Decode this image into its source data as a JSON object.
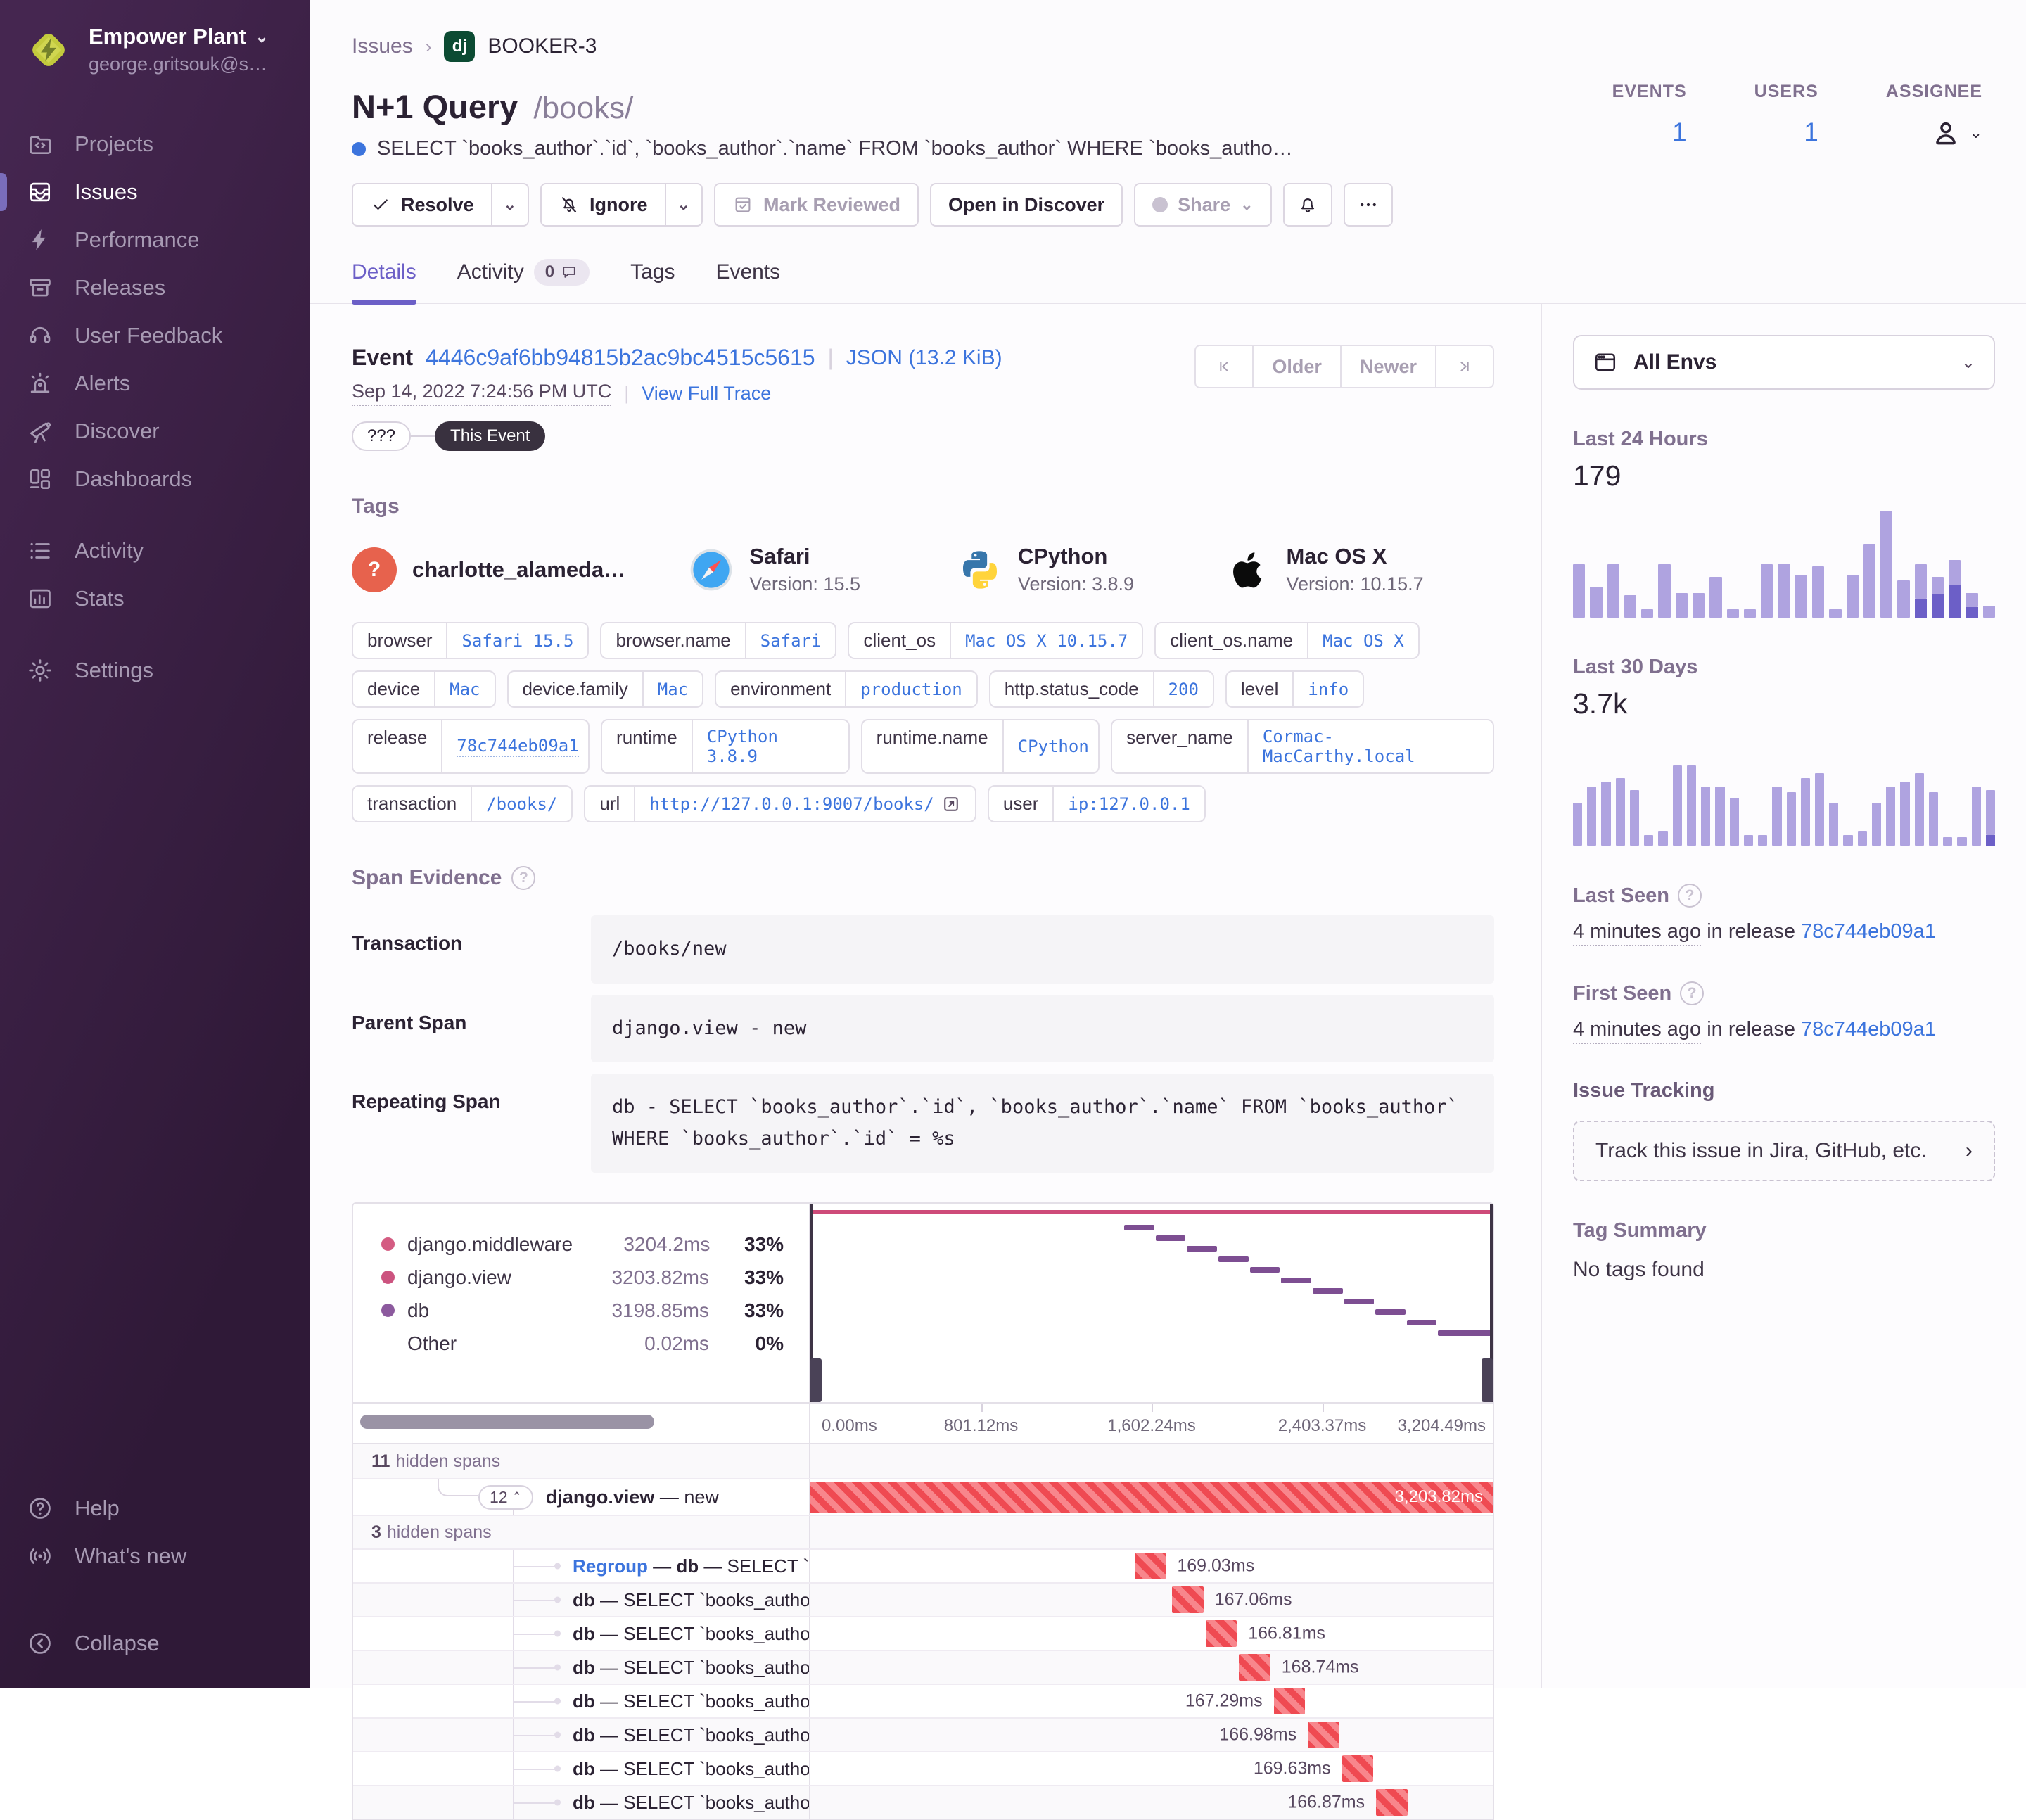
{
  "app": {
    "accent": "#6C5FC7",
    "link_blue": "#3C74DD",
    "danger_red": "#F2545B",
    "sidebar_bg": "#452650"
  },
  "sidebar": {
    "org": {
      "name": "Empower Plant",
      "email": "george.gritsouk@s…"
    },
    "groups": [
      {
        "items": [
          {
            "icon": "projects-icon",
            "label": "Projects"
          },
          {
            "icon": "issues-icon",
            "label": "Issues",
            "active": true
          },
          {
            "icon": "performance-icon",
            "label": "Performance"
          },
          {
            "icon": "releases-icon",
            "label": "Releases"
          },
          {
            "icon": "user-feedback-icon",
            "label": "User Feedback"
          },
          {
            "icon": "alerts-icon",
            "label": "Alerts"
          },
          {
            "icon": "discover-icon",
            "label": "Discover"
          },
          {
            "icon": "dashboards-icon",
            "label": "Dashboards"
          }
        ]
      },
      {
        "items": [
          {
            "icon": "activity-icon",
            "label": "Activity"
          },
          {
            "icon": "stats-icon",
            "label": "Stats"
          }
        ]
      },
      {
        "items": [
          {
            "icon": "settings-icon",
            "label": "Settings"
          }
        ]
      }
    ],
    "footer": [
      {
        "icon": "help-icon",
        "label": "Help"
      },
      {
        "icon": "whats-new-icon",
        "label": "What's new"
      }
    ],
    "collapse": {
      "icon": "collapse-icon",
      "label": "Collapse"
    }
  },
  "header": {
    "breadcrumb": {
      "root": "Issues",
      "sep": "›",
      "project_badge": "dj",
      "issue_id": "BOOKER-3"
    },
    "title": "N+1 Query",
    "culprit": "/books/",
    "subtitle": "SELECT `books_author`.`id`, `books_author`.`name` FROM `books_author` WHERE `books_autho…",
    "actions": {
      "resolve": "Resolve",
      "ignore": "Ignore",
      "mark_reviewed": "Mark Reviewed",
      "open_in_discover": "Open in Discover",
      "share": "Share"
    },
    "tabs": [
      {
        "label": "Details",
        "active": true
      },
      {
        "label": "Activity",
        "badge": "0"
      },
      {
        "label": "Tags"
      },
      {
        "label": "Events"
      }
    ],
    "stats": {
      "events_label": "EVENTS",
      "events_value": "1",
      "users_label": "USERS",
      "users_value": "1",
      "assignee_label": "ASSIGNEE"
    }
  },
  "event": {
    "label": "Event",
    "id": "4446c9af6bb94815b2ac9bc4515c5615",
    "json_link": "JSON (13.2 KiB)",
    "timestamp": "Sep 14, 2022 7:24:56 PM UTC",
    "trace_link": "View Full Trace",
    "quota_pill": "???",
    "this_event_pill": "This Event",
    "older": "Older",
    "newer": "Newer"
  },
  "tags_section": {
    "heading": "Tags",
    "contexts": [
      {
        "icon": "unknown-user-icon",
        "title": "charlotte_alameda…",
        "subtitle": ""
      },
      {
        "icon": "safari-icon",
        "title": "Safari",
        "subtitle": "Version: 15.5"
      },
      {
        "icon": "python-icon",
        "title": "CPython",
        "subtitle": "Version: 3.8.9"
      },
      {
        "icon": "apple-icon",
        "title": "Mac OS X",
        "subtitle": "Version: 10.15.7"
      }
    ],
    "pill_rows": [
      [
        {
          "key": "browser",
          "value": "Safari 15.5"
        },
        {
          "key": "browser.name",
          "value": "Safari"
        },
        {
          "key": "client_os",
          "value": "Mac OS X 10.15.7"
        },
        {
          "key": "client_os.name",
          "value": "Mac OS X"
        }
      ],
      [
        {
          "key": "device",
          "value": "Mac"
        },
        {
          "key": "device.family",
          "value": "Mac"
        },
        {
          "key": "environment",
          "value": "production"
        },
        {
          "key": "http.status_code",
          "value": "200"
        },
        {
          "key": "level",
          "value": "info"
        }
      ],
      [
        {
          "key": "release",
          "value": "78c744eb09a1",
          "underline": true
        },
        {
          "key": "runtime",
          "value": "CPython 3.8.9"
        },
        {
          "key": "runtime.name",
          "value": "CPython"
        },
        {
          "key": "server_name",
          "value": "Cormac-MacCarthy.local"
        }
      ],
      [
        {
          "key": "transaction",
          "value": "/books/"
        },
        {
          "key": "url",
          "value": "http://127.0.0.1:9007/books/",
          "external": true
        },
        {
          "key": "user",
          "value": "ip:127.0.0.1"
        }
      ]
    ]
  },
  "span_evidence": {
    "heading": "Span Evidence",
    "rows": [
      {
        "label": "Transaction",
        "value": "/books/new"
      },
      {
        "label": "Parent Span",
        "value": "django.view - new"
      },
      {
        "label": "Repeating Span",
        "value": "db - SELECT `books_author`.`id`, `books_author`.`name` FROM `books_author` WHERE `books_author`.`id` = %s"
      }
    ]
  },
  "waterfall": {
    "legend": [
      {
        "color": "#D45C82",
        "label": "django.middleware",
        "value": "3204.2ms",
        "pct": "33%"
      },
      {
        "color": "#CC537F",
        "label": "django.view",
        "value": "3203.82ms",
        "pct": "33%"
      },
      {
        "color": "#8C5A9E",
        "label": "db",
        "value": "3198.85ms",
        "pct": "33%"
      },
      {
        "color": "",
        "label": "Other",
        "value": "0.02ms",
        "pct": "0%"
      }
    ],
    "axis": [
      "0.00ms",
      "801.12ms",
      "1,602.24ms",
      "2,403.37ms",
      "3,204.49ms"
    ],
    "hidden_top": {
      "count": "11",
      "label": "hidden spans"
    },
    "group_row": {
      "badge_count": "12",
      "op_bold": "django.view",
      "sep": " — ",
      "desc": "new",
      "duration": "3,203.82ms"
    },
    "hidden_mid": {
      "count": "3",
      "label": "hidden spans"
    },
    "rows": [
      {
        "link": "Regroup",
        "bold": "db",
        "desc": " — SELECT `books_author`.`id`, `…",
        "duration": "169.03ms",
        "bar_left": 47.5,
        "label_side": "right"
      },
      {
        "bold": "db",
        "desc": " — SELECT `books_author`.`id`, `…",
        "duration": "167.06ms",
        "bar_left": 53.0,
        "label_side": "right"
      },
      {
        "bold": "db",
        "desc": " — SELECT `books_author`.`id`, `…",
        "duration": "166.81ms",
        "bar_left": 57.9,
        "label_side": "right"
      },
      {
        "bold": "db",
        "desc": " — SELECT `books_author`.`id`, `…",
        "duration": "168.74ms",
        "bar_left": 62.8,
        "label_side": "right"
      },
      {
        "bold": "db",
        "desc": " — SELECT `books_author`.`id`, `…",
        "duration": "167.29ms",
        "bar_left": 67.9,
        "label_side": "left"
      },
      {
        "bold": "db",
        "desc": " — SELECT `books_author`.`id`, `…",
        "duration": "166.98ms",
        "bar_left": 72.9,
        "label_side": "left"
      },
      {
        "bold": "db",
        "desc": " — SELECT `books_author`.`id`, `…",
        "duration": "169.63ms",
        "bar_left": 77.9,
        "label_side": "left"
      },
      {
        "bold": "db",
        "desc": " — SELECT `books_author`.`id`, `…",
        "duration": "166.87ms",
        "bar_left": 82.9,
        "label_side": "left"
      }
    ]
  },
  "aside": {
    "env_filter": "All Envs",
    "last24": {
      "heading": "Last 24 Hours",
      "total": "179"
    },
    "last30": {
      "heading": "Last 30 Days",
      "total": "3.7k"
    },
    "last_seen": {
      "heading": "Last Seen",
      "time": "4 minutes ago",
      "mid": " in release ",
      "release": "78c744eb09a1"
    },
    "first_seen": {
      "heading": "First Seen",
      "time": "4 minutes ago",
      "mid": " in release ",
      "release": "78c744eb09a1"
    },
    "issue_tracking": {
      "heading": "Issue Tracking",
      "cta": "Track this issue in Jira, GitHub, etc."
    },
    "tag_summary": {
      "heading": "Tag Summary",
      "empty": "No tags found"
    }
  },
  "chart_data": [
    {
      "type": "bar",
      "title": "Last 24 Hours",
      "total_label": "179",
      "legend_position": "none",
      "values_relative": [
        50,
        29,
        50,
        21,
        8,
        50,
        23,
        23,
        38,
        8,
        8,
        50,
        50,
        40,
        48,
        8,
        40,
        69,
        100,
        35,
        50,
        38,
        54,
        23,
        11
      ],
      "dark_relative": [
        0,
        0,
        0,
        0,
        0,
        0,
        0,
        0,
        0,
        0,
        0,
        0,
        0,
        0,
        0,
        0,
        0,
        0,
        0,
        0,
        18,
        22,
        30,
        10,
        0
      ],
      "colors": {
        "bar": "#AFA3E0",
        "dark": "#6C5FC7"
      }
    },
    {
      "type": "bar",
      "title": "Last 30 Days",
      "total_label": "3.7k",
      "legend_position": "none",
      "values_relative": [
        40,
        55,
        60,
        63,
        52,
        10,
        14,
        75,
        75,
        55,
        55,
        45,
        10,
        10,
        55,
        50,
        63,
        68,
        40,
        10,
        14,
        40,
        55,
        60,
        68,
        50,
        8,
        8,
        55,
        52
      ],
      "dark_relative": [
        0,
        0,
        0,
        0,
        0,
        0,
        0,
        0,
        0,
        0,
        0,
        0,
        0,
        0,
        0,
        0,
        0,
        0,
        0,
        0,
        0,
        0,
        0,
        0,
        0,
        0,
        0,
        0,
        0,
        10
      ],
      "colors": {
        "bar": "#AFA3E0",
        "dark": "#6C5FC7"
      }
    },
    {
      "type": "span-minimap",
      "title": "Span Evidence minimap",
      "series": [
        {
          "name": "django.middleware",
          "duration_ms": 3204.2,
          "pct": 33
        },
        {
          "name": "django.view",
          "duration_ms": 3203.82,
          "pct": 33
        },
        {
          "name": "db",
          "duration_ms": 3198.85,
          "pct": 33
        },
        {
          "name": "Other",
          "duration_ms": 0.02,
          "pct": 0
        }
      ],
      "x_axis_ms": [
        0,
        801.12,
        1602.24,
        2403.37,
        3204.49
      ],
      "staircase_lefts_pct": [
        46,
        50.6,
        55.2,
        59.8,
        64.4,
        69,
        73.6,
        78.2,
        82.8,
        87.4,
        92
      ],
      "staircase_width_pct": 4.4
    }
  ]
}
